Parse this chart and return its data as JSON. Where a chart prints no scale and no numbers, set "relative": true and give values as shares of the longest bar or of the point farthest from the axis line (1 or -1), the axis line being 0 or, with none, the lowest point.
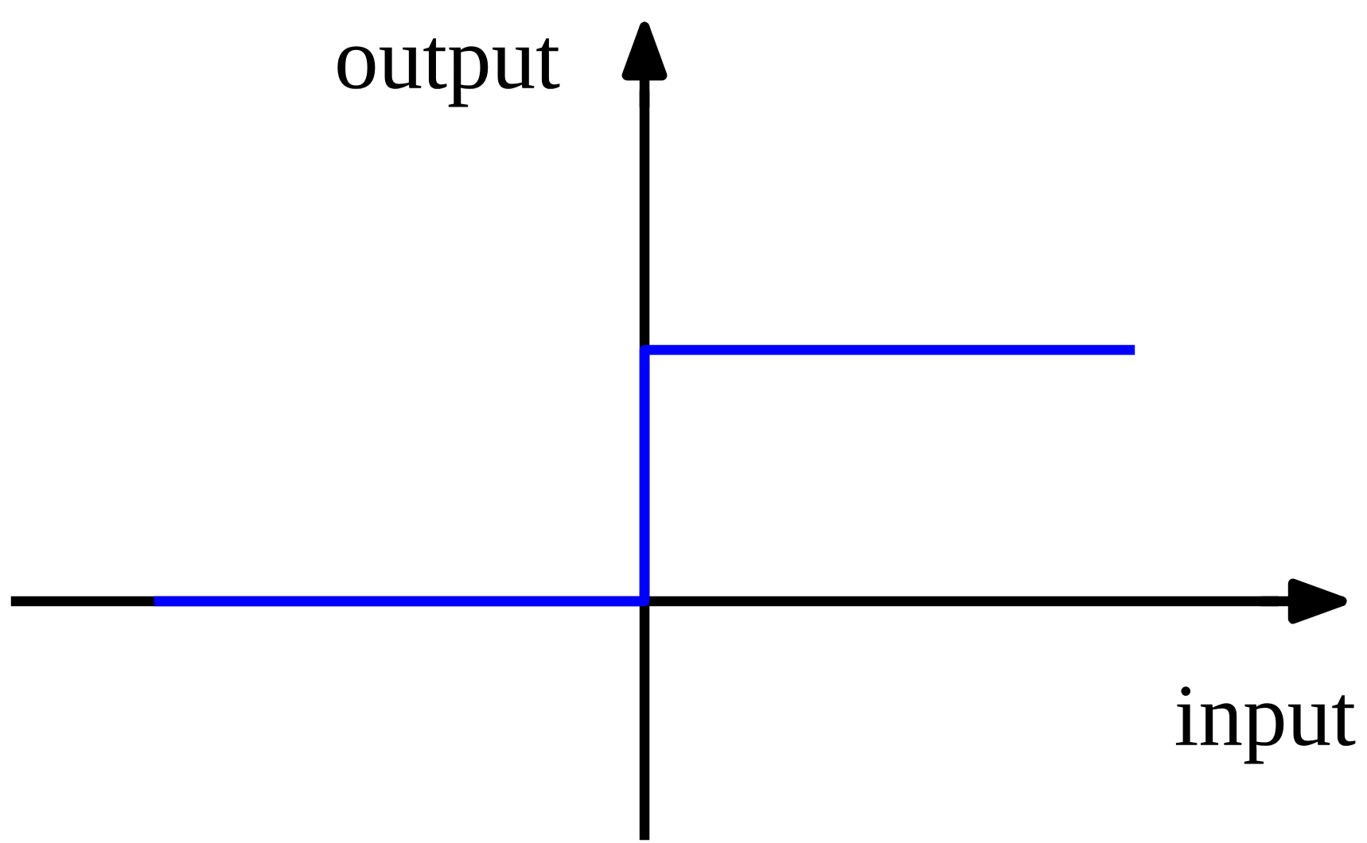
{
  "chart_data": {
    "type": "step",
    "relative": true,
    "xlabel": "input",
    "ylabel": "output",
    "categories": [
      null,
      null,
      null
    ],
    "series": [
      {
        "color": "#0000ff",
        "values": [
          0,
          1,
          1
        ]
      }
    ],
    "legend": false,
    "marker": "none",
    "line_style": "solid"
  }
}
